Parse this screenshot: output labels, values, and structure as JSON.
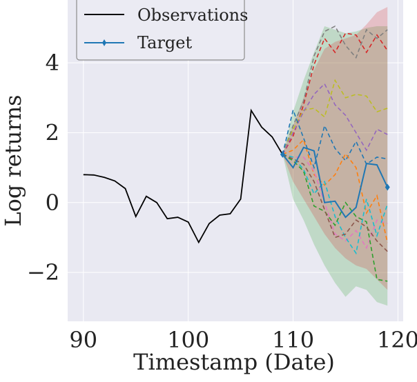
{
  "chart_data": {
    "type": "line",
    "title": "",
    "xlabel": "Timestamp (Date)",
    "ylabel": "Log returns",
    "xlim": [
      88.5,
      120.5
    ],
    "ylim": [
      -3.4,
      5.8
    ],
    "xticks": [
      90,
      100,
      110,
      120
    ],
    "xtick_labels": [
      "90",
      "100",
      "110",
      "120"
    ],
    "yticks": [
      -2,
      0,
      2,
      4
    ],
    "ytick_labels": [
      "−2",
      "0",
      "2",
      "4"
    ],
    "grid": true,
    "legend": {
      "position": "top-left",
      "entries": [
        {
          "label": "Observations",
          "color": "#000000",
          "marker": "none"
        },
        {
          "label": "Target",
          "color": "#1f77b4",
          "marker": "diamond"
        }
      ]
    },
    "colors": {
      "background": "#e9e9f2",
      "grid": "#ffffff",
      "observations": "#000000",
      "target": "#1f77b4"
    },
    "observations": {
      "x": [
        90,
        91,
        92,
        93,
        94,
        95,
        96,
        97,
        98,
        99,
        100,
        101,
        102,
        103,
        104,
        105,
        106,
        107,
        108,
        109
      ],
      "y": [
        0.8,
        0.79,
        0.72,
        0.62,
        0.4,
        -0.4,
        0.18,
        0.0,
        -0.46,
        -0.42,
        -0.56,
        -1.14,
        -0.6,
        -0.36,
        -0.32,
        0.1,
        2.64,
        2.16,
        1.88,
        1.38
      ]
    },
    "target": {
      "x": [
        109,
        110,
        111,
        112,
        113,
        114,
        115,
        116,
        117,
        118,
        119
      ],
      "y": [
        1.38,
        1.0,
        1.58,
        1.48,
        0.0,
        0.04,
        -0.42,
        -0.14,
        1.12,
        1.08,
        0.44
      ]
    },
    "forecast_x": [
      109,
      110,
      111,
      112,
      113,
      114,
      115,
      116,
      117,
      118,
      119
    ],
    "bands": [
      {
        "name": "band-green",
        "color": "#2ca02c",
        "opacity": 0.22,
        "lower": [
          1.38,
          0.1,
          -0.5,
          -1.2,
          -1.8,
          -2.3,
          -2.7,
          -2.4,
          -2.5,
          -2.85,
          -2.95
        ],
        "upper": [
          1.38,
          2.6,
          3.5,
          4.3,
          5.05,
          4.95,
          4.85,
          4.9,
          5.0,
          5.05,
          5.05
        ]
      },
      {
        "name": "band-red",
        "color": "#d62728",
        "opacity": 0.22,
        "lower": [
          1.38,
          0.6,
          0.1,
          -0.4,
          -0.9,
          -1.3,
          -1.6,
          -1.8,
          -1.9,
          -2.2,
          -2.5
        ],
        "upper": [
          1.38,
          2.2,
          3.0,
          3.8,
          4.4,
          4.6,
          4.7,
          4.8,
          5.1,
          5.45,
          5.6
        ]
      }
    ],
    "forecasts": [
      {
        "name": "forecast-red",
        "color": "#d62728",
        "y": [
          1.38,
          1.9,
          2.8,
          3.95,
          4.7,
          4.3,
          4.85,
          4.8,
          4.3,
          4.8,
          4.35
        ]
      },
      {
        "name": "forecast-gray",
        "color": "#7f7f7f",
        "y": [
          1.38,
          2.2,
          2.9,
          4.2,
          4.9,
          5.05,
          4.5,
          4.15,
          4.95,
          4.7,
          4.95
        ]
      },
      {
        "name": "forecast-yellow",
        "color": "#bcbd22",
        "y": [
          1.38,
          2.1,
          2.65,
          2.7,
          2.45,
          3.5,
          3.0,
          3.1,
          3.05,
          2.6,
          2.7
        ]
      },
      {
        "name": "forecast-purple",
        "color": "#9467bd",
        "y": [
          1.38,
          2.0,
          2.6,
          3.1,
          3.4,
          2.8,
          2.5,
          2.0,
          1.5,
          2.1,
          1.95
        ]
      },
      {
        "name": "forecast-blue",
        "color": "#1f77b4",
        "y": [
          1.38,
          2.65,
          1.85,
          1.0,
          2.2,
          1.55,
          1.2,
          1.75,
          1.1,
          1.3,
          1.25
        ]
      },
      {
        "name": "forecast-orange",
        "color": "#ff7f0e",
        "y": [
          1.38,
          1.5,
          1.8,
          0.8,
          0.5,
          0.8,
          1.4,
          1.0,
          -0.3,
          0.2,
          -1.15
        ]
      },
      {
        "name": "forecast-pink",
        "color": "#e377c2",
        "y": [
          1.38,
          1.3,
          1.3,
          0.9,
          0.0,
          -0.9,
          -1.1,
          -0.8,
          -1.3,
          -0.5,
          -0.6
        ]
      },
      {
        "name": "forecast-cyan",
        "color": "#17becf",
        "y": [
          1.38,
          1.3,
          0.95,
          0.25,
          0.6,
          -0.4,
          -1.0,
          -1.45,
          0.1,
          -0.95,
          -0.05
        ]
      },
      {
        "name": "forecast-olive-green",
        "color": "#2ca02c",
        "y": [
          1.38,
          1.2,
          0.9,
          -0.1,
          -0.25,
          -0.65,
          0.0,
          -0.4,
          -0.55,
          -2.2,
          -2.25
        ]
      },
      {
        "name": "forecast-brown",
        "color": "#8c564b",
        "y": [
          1.38,
          1.25,
          1.1,
          0.6,
          -0.2,
          -1.0,
          -0.9,
          -0.5,
          -0.7,
          -1.1,
          -1.4
        ]
      }
    ]
  }
}
